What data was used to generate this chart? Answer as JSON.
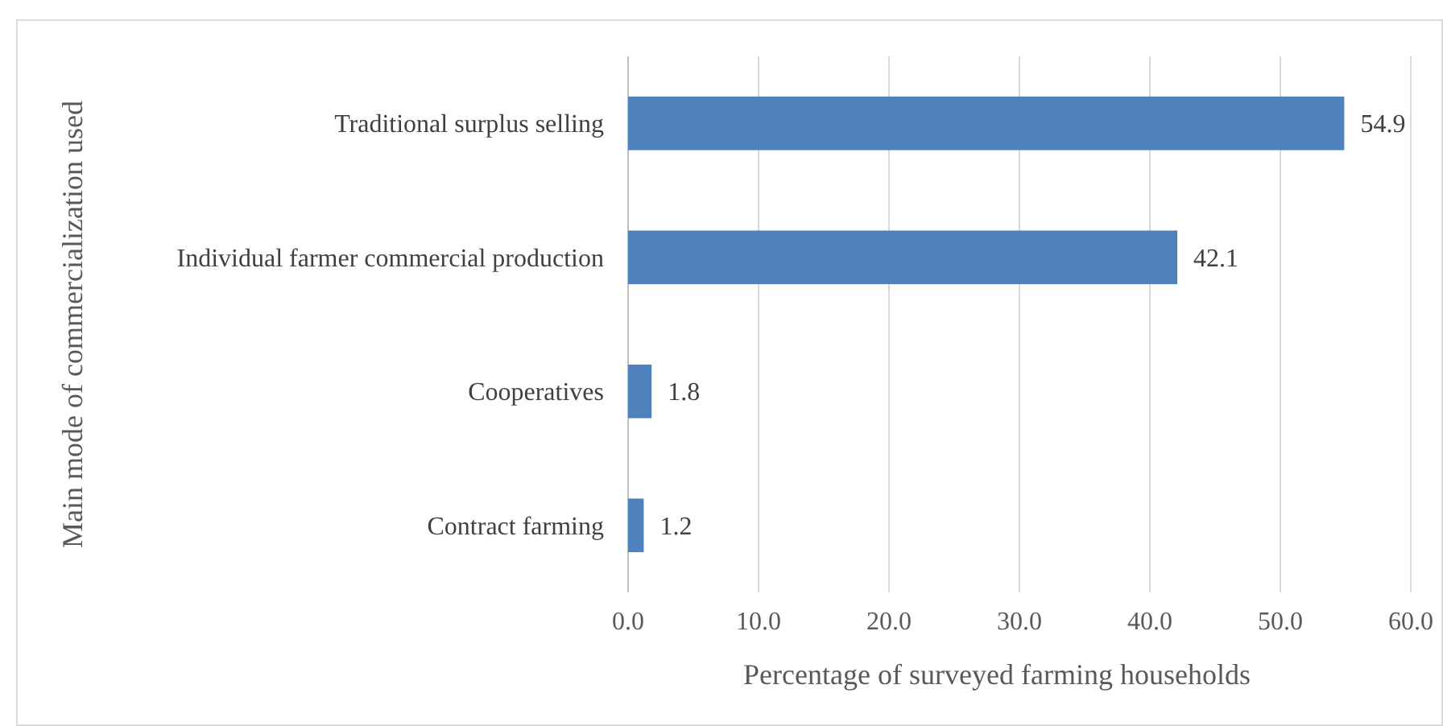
{
  "chart_data": {
    "type": "bar",
    "orientation": "horizontal",
    "xlabel": "Percentage of surveyed farming households",
    "ylabel": "Main mode of commercialization used",
    "categories": [
      "Traditional surplus selling",
      "Individual farmer commercial production",
      "Cooperatives",
      "Contract farming"
    ],
    "values": [
      54.9,
      42.1,
      1.8,
      1.2
    ],
    "color": "#4f81bd",
    "xlim": [
      0,
      60
    ],
    "xticks": [
      {
        "value": 0,
        "label": "0.0"
      },
      {
        "value": 10,
        "label": "10.0"
      },
      {
        "value": 20,
        "label": "20.0"
      },
      {
        "value": 30,
        "label": "30.0"
      },
      {
        "value": 40,
        "label": "40.0"
      },
      {
        "value": 50,
        "label": "50.0"
      },
      {
        "value": 60,
        "label": "60.0"
      }
    ],
    "grid": "x",
    "data_labels": true
  }
}
